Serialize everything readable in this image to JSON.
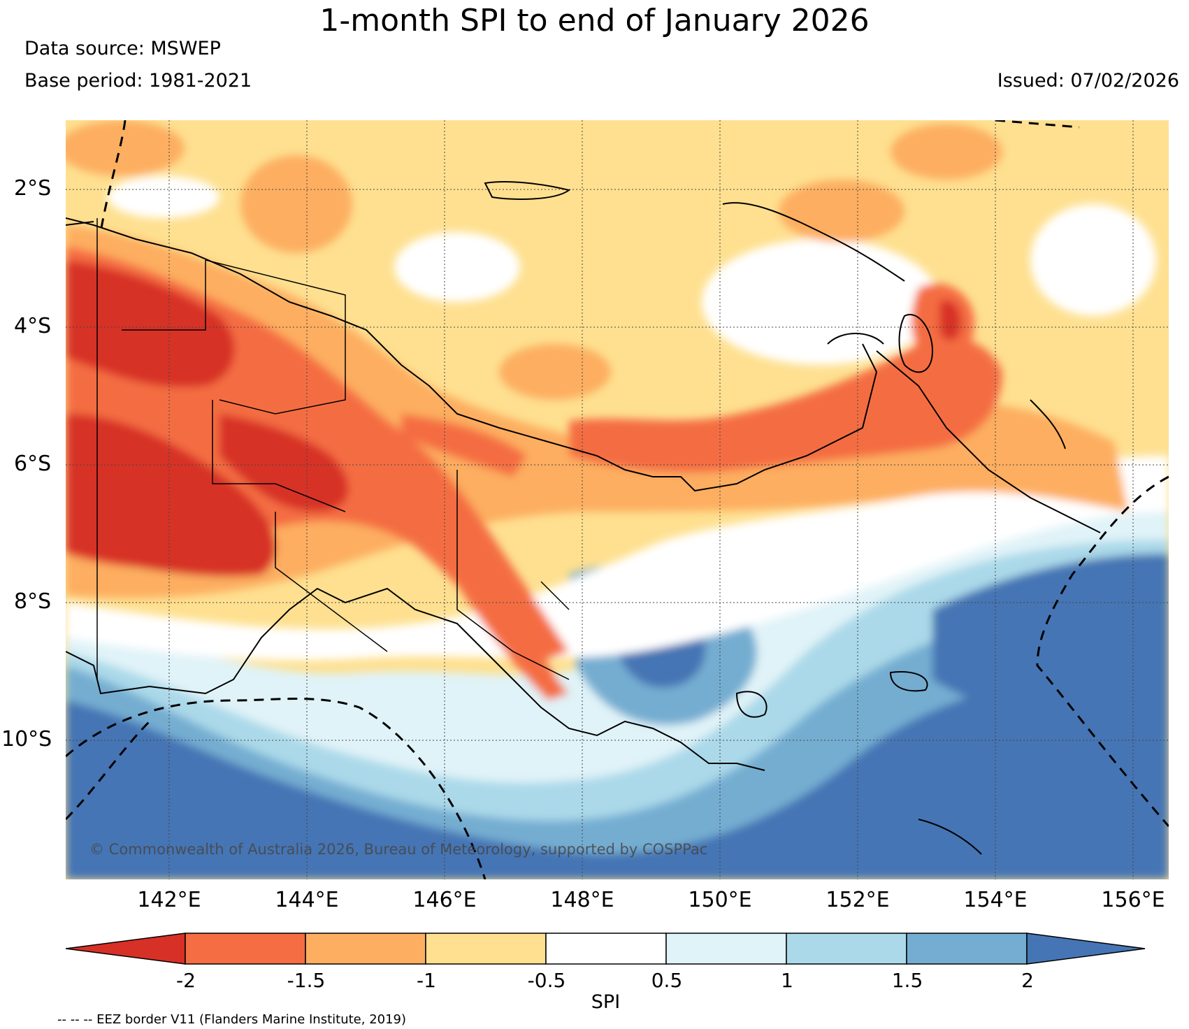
{
  "title": "1-month SPI to end of January 2026",
  "data_source": "Data source: MSWEP",
  "base_period": "Base period: 1981-2021",
  "issued": "Issued: 07/02/2026",
  "copyright": "© Commonwealth of Australia 2026, Bureau of Meteorology, supported by COSPPac",
  "map": {
    "region": "Papua New Guinea",
    "variable": "1-month Standardized Precipitation Index",
    "lon_range": [
      140.5,
      156.5
    ],
    "lat_range": [
      -12.0,
      -1.0
    ],
    "lat_labels": [
      "2°S",
      "4°S",
      "6°S",
      "8°S",
      "10°S"
    ],
    "lon_labels": [
      "142°E",
      "144°E",
      "146°E",
      "148°E",
      "150°E",
      "152°E",
      "154°E",
      "156°E"
    ],
    "gridline_style": "dotted",
    "eez_line_style": "dashed"
  },
  "colorbar": {
    "label": "SPI",
    "ticks": [
      "-2",
      "-1.5",
      "-1",
      "-0.5",
      "0.5",
      "1",
      "1.5",
      "2"
    ],
    "extend": "both",
    "colors": [
      "#d73027",
      "#f46d43",
      "#fdae61",
      "#fee090",
      "#ffffff",
      "#e0f3f8",
      "#abd9e9",
      "#74add1",
      "#4575b4"
    ]
  },
  "footnote": "-- -- -- EEZ border V11 (Flanders Marine Institute, 2019)"
}
